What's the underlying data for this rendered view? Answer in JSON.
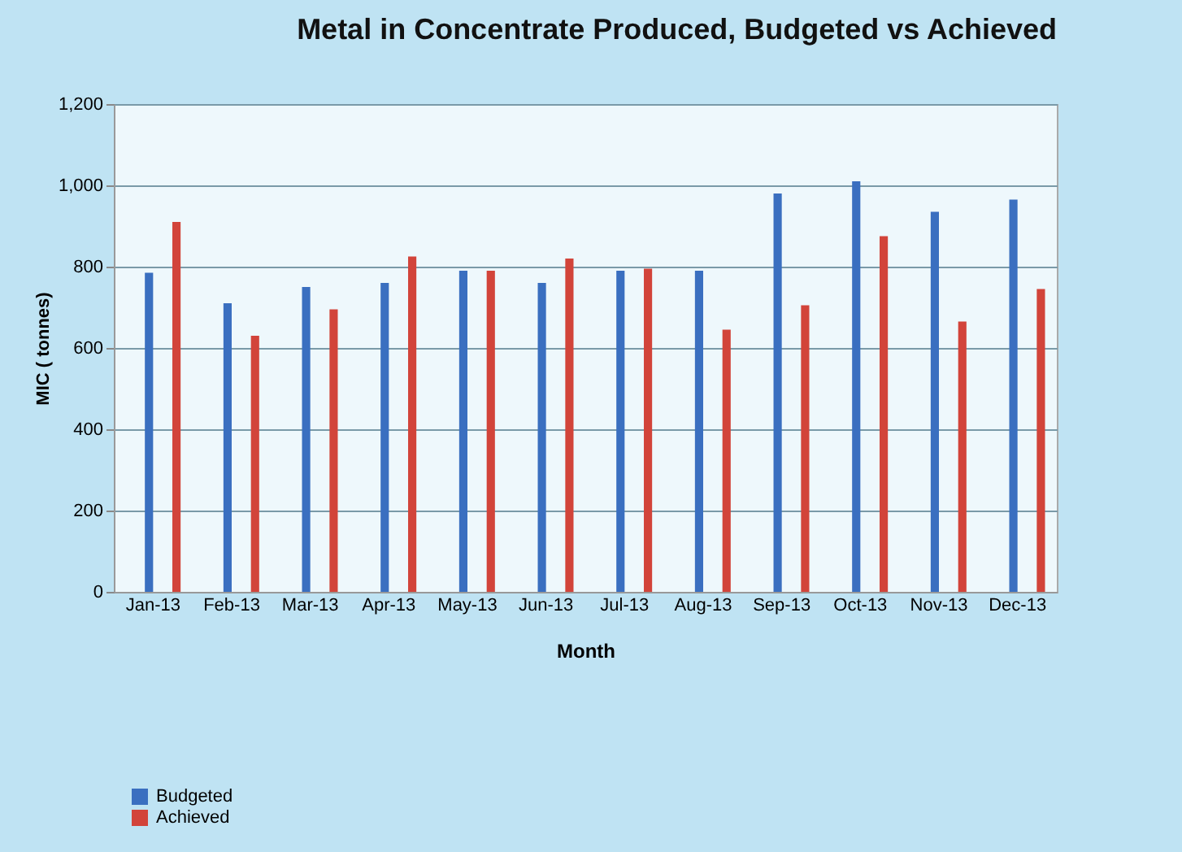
{
  "chart_data": {
    "type": "bar",
    "title": "Metal in Concentrate Produced, Budgeted vs Achieved",
    "xlabel": "Month",
    "ylabel": "MIC ( tonnes)",
    "categories": [
      "Jan-13",
      "Feb-13",
      "Mar-13",
      "Apr-13",
      "May-13",
      "Jun-13",
      "Jul-13",
      "Aug-13",
      "Sep-13",
      "Oct-13",
      "Nov-13",
      "Dec-13"
    ],
    "series": [
      {
        "name": "Budgeted",
        "color": "#3a6fc0",
        "values": [
          785,
          710,
          750,
          760,
          790,
          760,
          790,
          790,
          980,
          1010,
          935,
          965
        ]
      },
      {
        "name": "Achieved",
        "color": "#d2443a",
        "values": [
          910,
          630,
          695,
          825,
          790,
          820,
          795,
          645,
          705,
          875,
          665,
          745
        ]
      }
    ],
    "ylim": [
      0,
      1200
    ],
    "yticks": [
      0,
      {
        "value": 200,
        "label": "200"
      },
      {
        "value": 400,
        "label": "400"
      },
      {
        "value": 600,
        "label": "600"
      },
      {
        "value": 800,
        "label": "800"
      },
      {
        "value": 1000,
        "label": "1,000"
      },
      {
        "value": 1200,
        "label": "1,200"
      }
    ],
    "grid": "y",
    "legend": "bottom left"
  }
}
